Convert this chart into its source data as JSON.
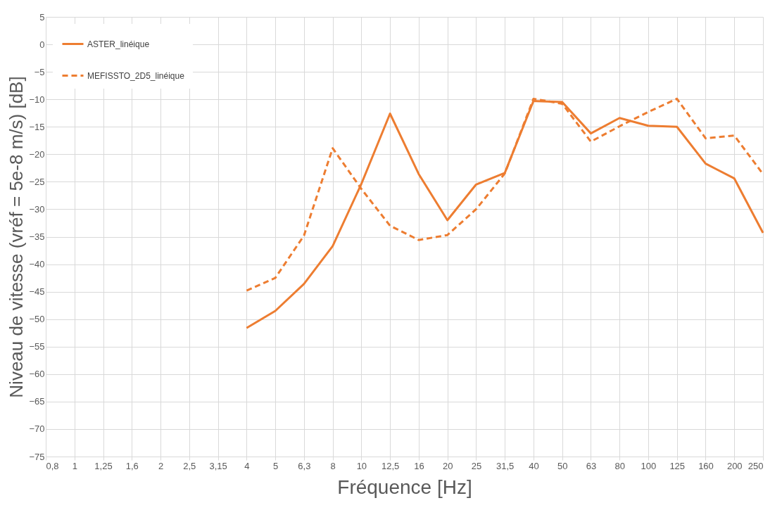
{
  "chart_data": {
    "type": "line",
    "xlabel": "Fréquence [Hz]",
    "ylabel": "Niveau de vitesse (vréf = 5e-8 m/s) [dB]",
    "categories": [
      "0,8",
      "1",
      "1,25",
      "1,6",
      "2",
      "2,5",
      "3,15",
      "4",
      "5",
      "6,3",
      "8",
      "10",
      "12,5",
      "16",
      "20",
      "25",
      "31,5",
      "40",
      "50",
      "63",
      "80",
      "100",
      "125",
      "160",
      "200",
      "250"
    ],
    "series": [
      {
        "name": "ASTER_linéique",
        "color": "#ed7d31",
        "line_style": "solid",
        "values": [
          null,
          null,
          null,
          null,
          null,
          null,
          null,
          -51.6,
          -48.5,
          -43.6,
          -36.7,
          -25.4,
          -12.6,
          -23.6,
          -32,
          -25.5,
          -23.4,
          -10.3,
          -10.5,
          -16.2,
          -13.4,
          -14.8,
          -15,
          -21.7,
          -24.4,
          -34.3
        ]
      },
      {
        "name": "MEFISSTO_2D5_linéique",
        "color": "#ed7d31",
        "line_style": "dashed",
        "values": [
          null,
          null,
          null,
          null,
          null,
          null,
          null,
          -44.8,
          -42.5,
          -34.8,
          -18.9,
          -26.3,
          -33,
          -35.6,
          -34.7,
          -30,
          -23.5,
          -9.9,
          -10.8,
          -17.7,
          -14.9,
          -12.3,
          -9.9,
          -17.1,
          -16.6,
          -23.6
        ]
      }
    ],
    "ylim": [
      -75,
      5
    ],
    "yticks": [
      -75,
      -70,
      -65,
      -60,
      -55,
      -50,
      -45,
      -40,
      -35,
      -30,
      -25,
      -20,
      -15,
      -10,
      -5,
      0,
      5
    ],
    "grid": true,
    "legend": "top left",
    "marker": "none"
  }
}
